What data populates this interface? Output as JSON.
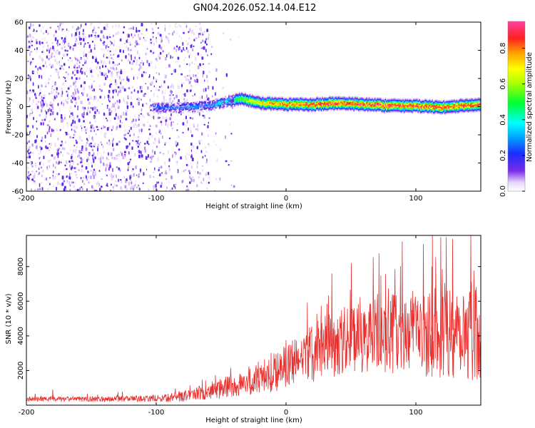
{
  "figure": {
    "title": "GN04.2026.052.14.04.E12"
  },
  "chart_data": [
    {
      "type": "heatmap",
      "title": "GN04.2026.052.14.04.E12",
      "xlabel": "Height of straight line (km)",
      "ylabel": "Frequency (Hz)",
      "xlim": [
        -200,
        150
      ],
      "ylim": [
        -60,
        60
      ],
      "xticks": [
        -200,
        -100,
        0,
        100
      ],
      "yticks": [
        -60,
        -40,
        -20,
        0,
        20,
        40,
        60
      ],
      "xtick_labels": [
        "-200",
        "-100",
        "0",
        "100"
      ],
      "ytick_labels": [
        "-60",
        "-40",
        "-20",
        "0",
        "20",
        "40",
        "60"
      ],
      "colorbar": {
        "label": "Normalized spectral amplitude",
        "range": [
          0,
          0.95
        ],
        "ticks": [
          0.0,
          0.2,
          0.4,
          0.6,
          0.8
        ],
        "tick_labels": [
          "0.0",
          "0.2",
          "0.4",
          "0.6",
          "0.8"
        ]
      },
      "ridge": {
        "description_points_x": [
          -100,
          -80,
          -60,
          -45,
          -35,
          -20,
          0,
          20,
          40,
          60,
          80,
          100,
          120,
          150
        ],
        "frequency_hz": [
          0,
          0,
          1,
          4,
          6,
          3,
          2,
          2,
          3,
          2,
          1,
          1,
          0,
          2
        ],
        "peak_amplitude": [
          0.25,
          0.3,
          0.3,
          0.45,
          0.6,
          0.75,
          0.85,
          0.9,
          0.9,
          0.9,
          0.92,
          0.9,
          0.88,
          0.9
        ]
      },
      "noise_region_x": [
        -200,
        -55
      ]
    },
    {
      "type": "line",
      "xlabel": "Height of straight line (km)",
      "ylabel": "SNR (10 * v/v)",
      "xlim": [
        -200,
        150
      ],
      "ylim": [
        0,
        9800
      ],
      "xticks": [
        -200,
        -100,
        0,
        100
      ],
      "yticks": [
        2000,
        4000,
        6000,
        8000
      ],
      "xtick_labels": [
        "-200",
        "-100",
        "0",
        "100"
      ],
      "ytick_labels": [
        "2000",
        "4000",
        "6000",
        "8000"
      ],
      "series": [
        {
          "name": "SNR",
          "color": "#e8302e",
          "envelope_x": [
            -200,
            -150,
            -100,
            -80,
            -60,
            -40,
            -20,
            0,
            20,
            40,
            60,
            80,
            100,
            120,
            140,
            150
          ],
          "envelope_mean": [
            350,
            350,
            380,
            500,
            800,
            1100,
            1600,
            2200,
            3000,
            3700,
            3900,
            4100,
            4200,
            4300,
            4400,
            4400
          ],
          "envelope_spread": [
            150,
            150,
            180,
            300,
            500,
            700,
            1000,
            1300,
            1700,
            2000,
            2100,
            2300,
            2500,
            2800,
            3000,
            3000
          ],
          "notable_peaks_x": [
            -180,
            35,
            50,
            112,
            128,
            142
          ],
          "notable_peaks_y": [
            900,
            7600,
            8200,
            8000,
            9600,
            9800
          ]
        }
      ]
    }
  ]
}
